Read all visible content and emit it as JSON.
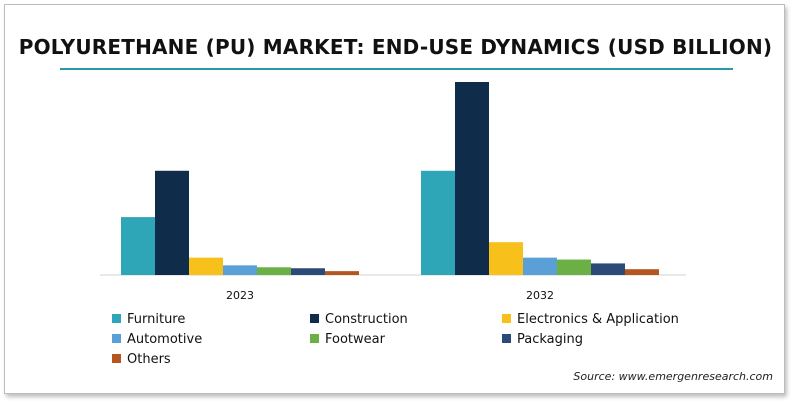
{
  "title": "POLYURETHANE (PU) MARKET: END-USE DYNAMICS (USD BILLION)",
  "source": "Source: www.emergenresearch.com",
  "chart_data": {
    "type": "bar",
    "categories": [
      "2023",
      "2032"
    ],
    "series": [
      {
        "name": "Furniture",
        "values": [
          30,
          54
        ],
        "color": "#2ea6b8"
      },
      {
        "name": "Construction",
        "values": [
          54,
          100
        ],
        "color": "#0f2d4a"
      },
      {
        "name": "Electronics & Application",
        "values": [
          9,
          17
        ],
        "color": "#f7c01b"
      },
      {
        "name": "Automotive",
        "values": [
          5,
          9
        ],
        "color": "#5a9fd6"
      },
      {
        "name": "Footwear",
        "values": [
          4,
          8
        ],
        "color": "#6ab045"
      },
      {
        "name": "Packaging",
        "values": [
          3.5,
          6
        ],
        "color": "#2c4a78"
      },
      {
        "name": "Others",
        "values": [
          2,
          3
        ],
        "color": "#b5551f"
      }
    ],
    "ylim": [
      0,
      100
    ],
    "grid": false,
    "legend_position": "bottom"
  }
}
